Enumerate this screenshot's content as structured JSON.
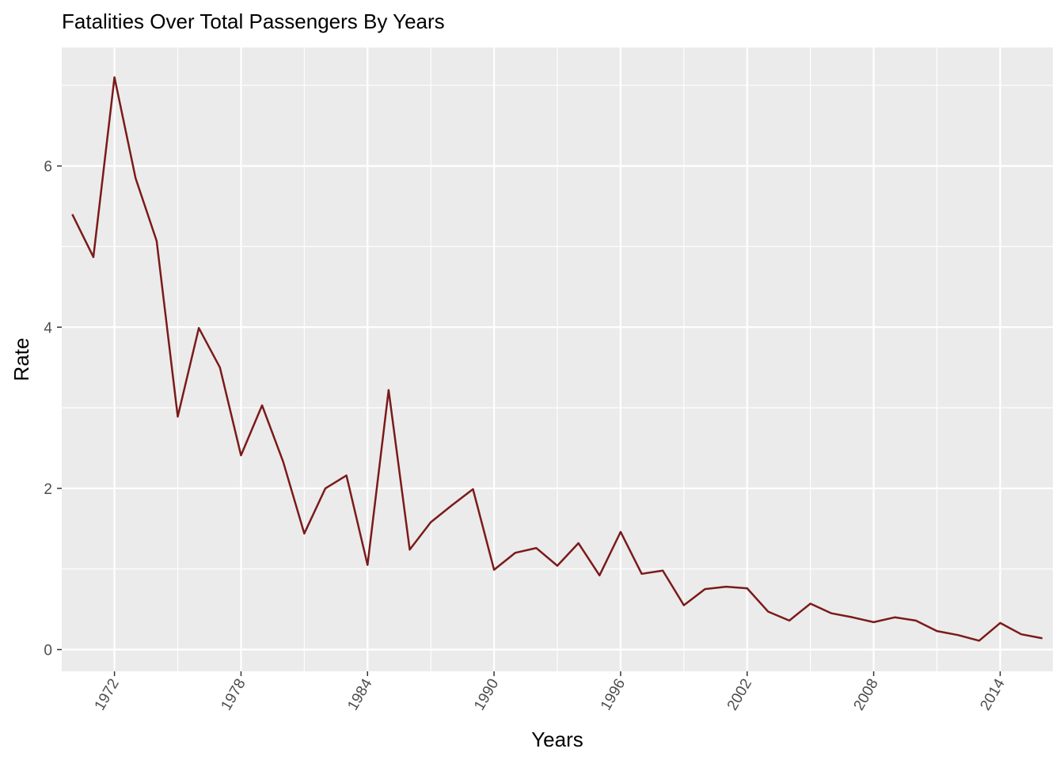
{
  "chart_data": {
    "type": "line",
    "title": "Fatalities Over Total Passengers By Years",
    "xlabel": "Years",
    "ylabel": "Rate",
    "xlim": [
      1969.5,
      2016.5
    ],
    "ylim": [
      -0.27,
      7.47
    ],
    "x_ticks": [
      1972,
      1978,
      1984,
      1990,
      1996,
      2002,
      2008,
      2014
    ],
    "x_tick_labels": [
      "1972",
      "1978",
      "1984",
      "1990",
      "1996",
      "2002",
      "2008",
      "2014"
    ],
    "y_ticks": [
      0,
      2,
      4,
      6
    ],
    "y_tick_labels": [
      "0",
      "2",
      "4",
      "6"
    ],
    "grid": true,
    "line_color": "#7b1a1a",
    "panel_background": "#ebebeb",
    "grid_color": "#ffffff",
    "x": [
      1970,
      1971,
      1972,
      1973,
      1974,
      1975,
      1976,
      1977,
      1978,
      1979,
      1980,
      1981,
      1982,
      1983,
      1984,
      1985,
      1986,
      1987,
      1988,
      1989,
      1990,
      1991,
      1992,
      1993,
      1994,
      1995,
      1996,
      1997,
      1998,
      1999,
      2000,
      2001,
      2002,
      2003,
      2004,
      2005,
      2006,
      2007,
      2008,
      2009,
      2010,
      2011,
      2012,
      2013,
      2014,
      2015,
      2016
    ],
    "series": [
      {
        "values": [
          5.4,
          4.87,
          7.1,
          5.85,
          5.07,
          2.89,
          3.99,
          3.5,
          2.41,
          3.03,
          2.33,
          1.44,
          2.0,
          2.16,
          1.05,
          3.22,
          1.24,
          1.58,
          1.79,
          1.99,
          0.99,
          1.2,
          1.26,
          1.04,
          1.32,
          0.92,
          1.46,
          0.94,
          0.98,
          0.55,
          0.75,
          0.78,
          0.76,
          0.47,
          0.36,
          0.57,
          0.45,
          0.4,
          0.34,
          0.4,
          0.36,
          0.23,
          0.18,
          0.11,
          0.33,
          0.19,
          0.14
        ]
      }
    ]
  }
}
